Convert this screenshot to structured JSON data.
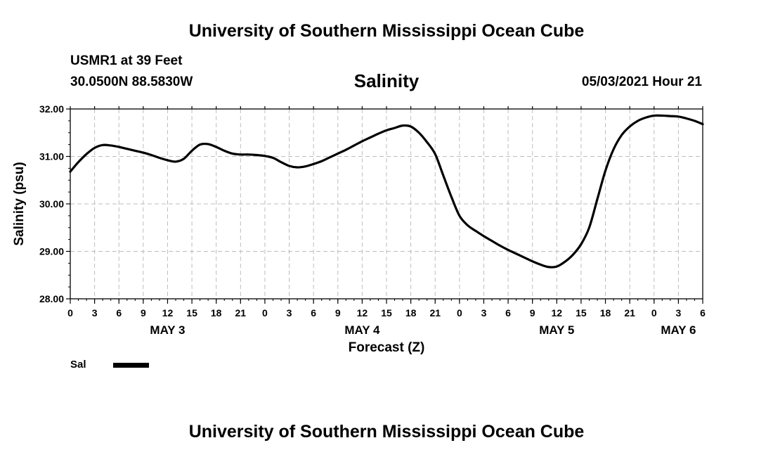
{
  "header": {
    "title": "University of Southern Mississippi Ocean Cube",
    "station": "USMR1 at 39 Feet",
    "coords": "30.0500N  88.5830W",
    "plot_title": "Salinity",
    "run_time": "05/03/2021 Hour 21"
  },
  "footer": {
    "title": "University of Southern Mississippi Ocean Cube"
  },
  "legend": {
    "label": "Sal",
    "color": "#000000"
  },
  "chart_data": {
    "type": "line",
    "title": "Salinity",
    "xlabel": "Forecast (Z)",
    "ylabel": "Salinity (psu)",
    "ylim": [
      28.0,
      32.0
    ],
    "y_ticks": [
      "28.00",
      "29.00",
      "30.00",
      "31.00",
      "32.00"
    ],
    "x_range_hours": [
      0,
      78
    ],
    "x_tick_labels": [
      "0",
      "3",
      "6",
      "9",
      "12",
      "15",
      "18",
      "21",
      "0",
      "3",
      "6",
      "9",
      "12",
      "15",
      "18",
      "21",
      "0",
      "3",
      "6",
      "9",
      "12",
      "15",
      "18",
      "21",
      "0",
      "3",
      "6"
    ],
    "day_labels": [
      {
        "label": "MAY 3",
        "hour": 12
      },
      {
        "label": "MAY 4",
        "hour": 36
      },
      {
        "label": "MAY 5",
        "hour": 60
      },
      {
        "label": "MAY 6",
        "hour": 75
      }
    ],
    "grid": true,
    "series": [
      {
        "name": "Sal",
        "color": "#000000",
        "x": [
          0,
          1,
          2,
          3,
          4,
          5,
          6,
          7,
          8,
          9,
          10,
          11,
          12,
          13,
          14,
          15,
          16,
          17,
          18,
          19,
          20,
          21,
          22,
          23,
          24,
          25,
          26,
          27,
          28,
          29,
          30,
          31,
          32,
          33,
          34,
          35,
          36,
          37,
          38,
          39,
          40,
          41,
          42,
          43,
          44,
          45,
          46,
          47,
          48,
          49,
          50,
          51,
          52,
          53,
          54,
          55,
          56,
          57,
          58,
          59,
          60,
          61,
          62,
          63,
          64,
          65,
          66,
          67,
          68,
          69,
          70,
          71,
          72,
          73,
          74,
          75,
          76,
          77,
          78
        ],
        "values": [
          30.68,
          30.88,
          31.05,
          31.18,
          31.24,
          31.23,
          31.2,
          31.16,
          31.12,
          31.08,
          31.03,
          30.97,
          30.92,
          30.89,
          30.95,
          31.12,
          31.25,
          31.26,
          31.2,
          31.12,
          31.06,
          31.04,
          31.04,
          31.03,
          31.01,
          30.97,
          30.88,
          30.8,
          30.77,
          30.79,
          30.84,
          30.9,
          30.98,
          31.06,
          31.14,
          31.23,
          31.32,
          31.4,
          31.48,
          31.55,
          31.6,
          31.65,
          31.63,
          31.5,
          31.3,
          31.05,
          30.6,
          30.15,
          29.75,
          29.55,
          29.43,
          29.32,
          29.22,
          29.12,
          29.03,
          28.95,
          28.87,
          28.79,
          28.72,
          28.67,
          28.68,
          28.78,
          28.93,
          29.15,
          29.5,
          30.1,
          30.7,
          31.15,
          31.45,
          31.63,
          31.75,
          31.82,
          31.86,
          31.86,
          31.85,
          31.84,
          31.8,
          31.75,
          31.68
        ]
      }
    ]
  }
}
